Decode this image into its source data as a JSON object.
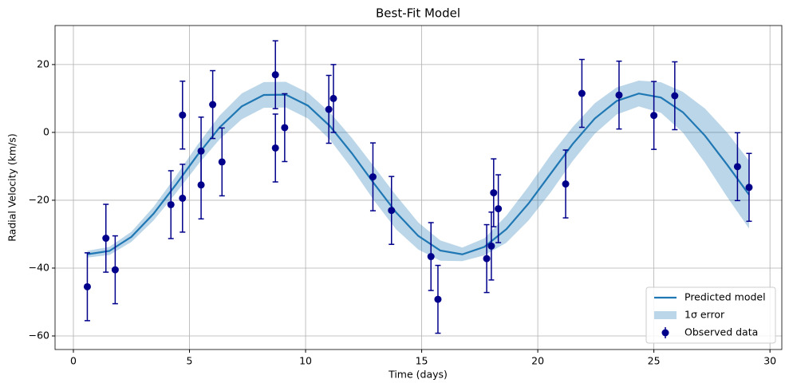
{
  "chart_data": {
    "type": "errorbar",
    "title": "Best-Fit Model",
    "x_label": "Time (days)",
    "y_label": "Radial Velocity (km/s)",
    "xlim": [
      -0.79,
      30.51
    ],
    "ylim": [
      -64,
      31.5
    ],
    "xticks": [
      0,
      5,
      10,
      15,
      20,
      25,
      30
    ],
    "yticks": [
      {
        "value": -60,
        "label": "−60"
      },
      {
        "value": -40,
        "label": "−40"
      },
      {
        "value": -20,
        "label": "−20"
      },
      0,
      20
    ],
    "grid": true,
    "legend": "lower right",
    "series": [
      {
        "name": "Predicted model",
        "type": "line",
        "color": "#1f77b4",
        "x": [
          0.6,
          1.55,
          2.5,
          3.45,
          4.4,
          5.35,
          6.3,
          7.25,
          8.2,
          9.15,
          10.1,
          11.05,
          12,
          12.95,
          13.9,
          14.85,
          15.8,
          16.75,
          17.7,
          18.65,
          19.6,
          20.55,
          21.5,
          22.45,
          23.4,
          24.35,
          25.3,
          26.25,
          27.2,
          28.15,
          29.1
        ],
        "values": [
          -35.92,
          -34.95,
          -30.78,
          -23.99,
          -15.54,
          -6.63,
          1.49,
          7.67,
          11.03,
          11.12,
          7.9,
          1.85,
          -6.2,
          -15.1,
          -23.6,
          -30.5,
          -34.82,
          -35.95,
          -33.75,
          -28.51,
          -20.98,
          -12.21,
          -3.45,
          4.07,
          9.28,
          11.46,
          10.29,
          5.94,
          -0.97,
          -9.48,
          -18.37
        ]
      },
      {
        "name": "1σ error",
        "type": "band",
        "color": "#1f77b4",
        "x": [
          0.6,
          1.55,
          2.5,
          3.45,
          4.4,
          5.35,
          6.3,
          7.25,
          8.2,
          9.15,
          10.1,
          11.05,
          12,
          12.95,
          13.9,
          14.85,
          15.8,
          16.75,
          17.7,
          18.65,
          19.6,
          20.55,
          21.5,
          22.45,
          23.4,
          24.35,
          25.3,
          26.25,
          27.2,
          28.15,
          29.1
        ],
        "lower": [
          -36.92,
          -36.15,
          -32.28,
          -25.99,
          -18.04,
          -9.63,
          -2.01,
          3.87,
          7.23,
          7.32,
          4.1,
          -2.15,
          -10.7,
          -20.1,
          -28.6,
          -34.5,
          -37.82,
          -37.95,
          -36.25,
          -32.51,
          -25.98,
          -17.71,
          -8.45,
          -0.43,
          5.28,
          7.66,
          5.79,
          -0.06,
          -8.97,
          -18.98,
          -28.37
        ],
        "upper": [
          -34.92,
          -33.75,
          -29.28,
          -21.99,
          -13.04,
          -3.63,
          4.99,
          11.47,
          14.83,
          14.92,
          11.7,
          5.85,
          -1.7,
          -10.1,
          -18.6,
          -26.5,
          -31.82,
          -33.95,
          -31.25,
          -24.51,
          -15.98,
          -6.71,
          1.55,
          8.57,
          13.28,
          15.26,
          14.79,
          11.94,
          7.03,
          0.02,
          -8.37
        ]
      },
      {
        "name": "Observed data",
        "type": "errorbar",
        "color": "#00008b",
        "x": [
          0.6,
          1.4,
          1.8,
          4.2,
          4.7,
          4.7,
          5.5,
          5.5,
          6.0,
          6.4,
          8.7,
          8.7,
          9.1,
          11.0,
          11.2,
          12.9,
          13.7,
          15.4,
          15.7,
          17.8,
          18.0,
          18.1,
          18.3,
          21.2,
          21.9,
          23.5,
          25.0,
          25.9,
          28.6,
          29.1
        ],
        "values": [
          -45.5,
          -31.2,
          -40.5,
          -21.3,
          5.1,
          -19.4,
          -5.5,
          -15.5,
          8.2,
          -8.7,
          17.0,
          -4.6,
          1.4,
          6.8,
          10.0,
          -13.1,
          -23.0,
          -36.6,
          -49.2,
          -37.2,
          -33.5,
          -17.8,
          -22.5,
          -15.2,
          11.5,
          11.0,
          5.0,
          10.8,
          -10.1,
          -16.2
        ],
        "errors": [
          10,
          10,
          10,
          10,
          10,
          10,
          10,
          10,
          10,
          10,
          10,
          10,
          10,
          10,
          10,
          10,
          10,
          10,
          10,
          10,
          10,
          10,
          10,
          10,
          10,
          10,
          10,
          10,
          10,
          10
        ]
      }
    ]
  }
}
